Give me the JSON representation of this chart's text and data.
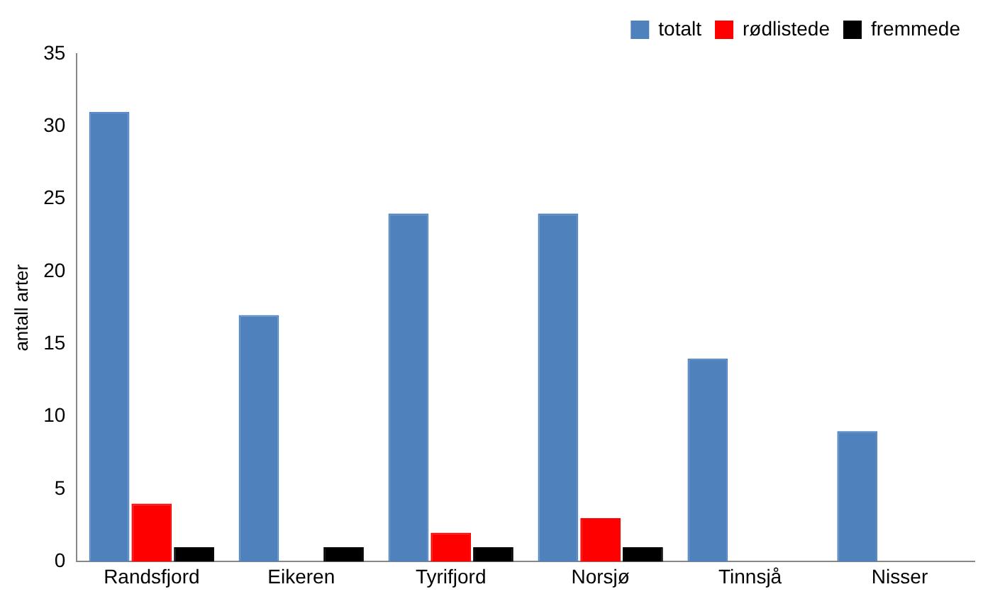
{
  "chart_data": {
    "type": "bar",
    "ylabel": "antall arter",
    "categories": [
      "Randsfjord",
      "Eikeren",
      "Tyrifjord",
      "Norsjø",
      "Tinnsjå",
      "Nisser"
    ],
    "series": [
      {
        "name": "totalt",
        "color": "#4f81bd",
        "values": [
          31,
          17,
          24,
          24,
          14,
          9
        ]
      },
      {
        "name": "rødlistede",
        "color": "#ff0000",
        "values": [
          4,
          0,
          2,
          3,
          0,
          0
        ]
      },
      {
        "name": "fremmede",
        "color": "#000000",
        "values": [
          1,
          1,
          1,
          1,
          0,
          0
        ]
      }
    ],
    "ylim": [
      0,
      35
    ],
    "yticks": [
      0,
      5,
      10,
      15,
      20,
      25,
      30,
      35
    ],
    "grid": false,
    "legend": "top right"
  }
}
